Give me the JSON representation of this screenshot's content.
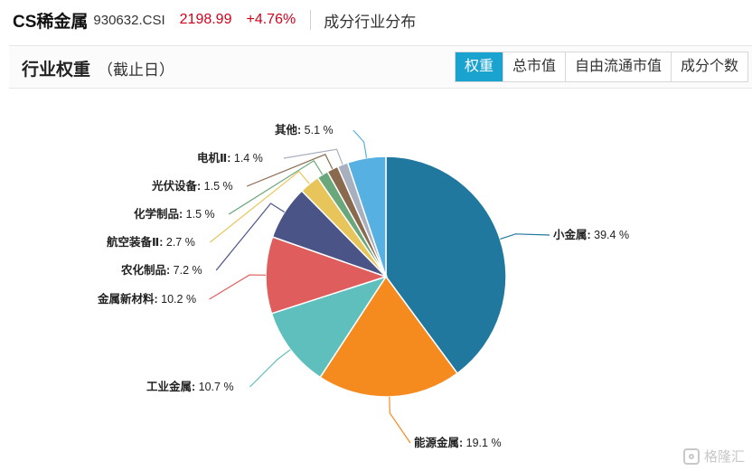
{
  "header": {
    "index_name": "CS稀金属",
    "index_code": "930632.CSI",
    "price": "2198.99",
    "change": "+4.76%",
    "page_title": "成分行业分布"
  },
  "panel": {
    "title": "行业权重",
    "subtitle": "（截止日）",
    "tabs": [
      {
        "label": "权重",
        "active": true
      },
      {
        "label": "总市值",
        "active": false
      },
      {
        "label": "自由流通市值",
        "active": false
      },
      {
        "label": "成分个数",
        "active": false
      }
    ]
  },
  "chart_data": {
    "type": "pie",
    "slices": [
      {
        "name": "小金属",
        "value": 39.4,
        "label": "小金属: 39.4 %",
        "color": "#21789f"
      },
      {
        "name": "能源金属",
        "value": 19.1,
        "label": "能源金属: 19.1 %",
        "color": "#f58a1f"
      },
      {
        "name": "工业金属",
        "value": 10.7,
        "label": "工业金属: 10.7 %",
        "color": "#5fbfbd"
      },
      {
        "name": "金属新材料",
        "value": 10.2,
        "label": "金属新材料: 10.2 %",
        "color": "#e05d5d"
      },
      {
        "name": "农化制品",
        "value": 7.2,
        "label": "农化制品: 7.2 %",
        "color": "#4b5487"
      },
      {
        "name": "航空装备Ⅱ",
        "value": 2.7,
        "label": "航空装备Ⅱ: 2.7 %",
        "color": "#e8c55a"
      },
      {
        "name": "化学制品",
        "value": 1.5,
        "label": "化学制品: 1.5 %",
        "color": "#6aa87c"
      },
      {
        "name": "光伏设备",
        "value": 1.5,
        "label": "光伏设备: 1.5 %",
        "color": "#8a6a4e"
      },
      {
        "name": "电机Ⅱ",
        "value": 1.4,
        "label": "电机Ⅱ: 1.4 %",
        "color": "#a8b0c0"
      },
      {
        "name": "其他",
        "value": 5.1,
        "label": "其他: 5.1 %",
        "color": "#56b0e2"
      }
    ],
    "start_angle_deg": 0,
    "direction": "clockwise"
  },
  "watermark": {
    "text": "格隆汇",
    "icon": "gelonghui-logo-icon"
  }
}
